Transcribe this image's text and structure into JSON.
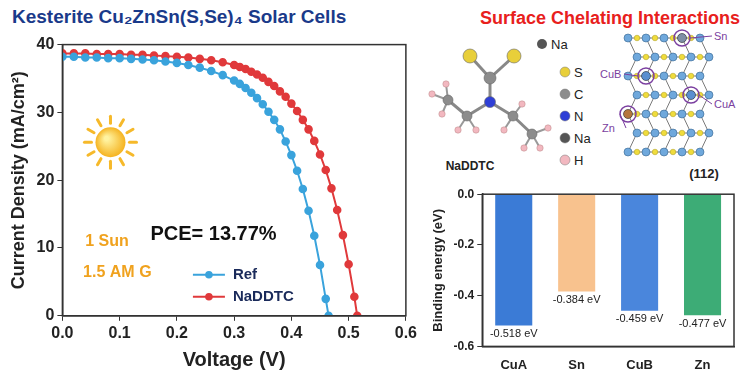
{
  "title": "Kesterite Cu₂ZnSn(S,Se)₄ Solar Cells",
  "chart_data": [
    {
      "type": "line",
      "x_label": "Voltage (V)",
      "y_label": "Current Density (mA/cm²)",
      "xlim": [
        0,
        0.6
      ],
      "xticks": [
        {
          "value": 0,
          "label": "0.0"
        },
        0.1,
        0.2,
        0.3,
        0.4,
        0.5,
        0.6
      ],
      "ylim": [
        0,
        40
      ],
      "yticks": [
        0,
        10,
        20,
        30,
        40
      ],
      "grid": false,
      "legend": "lower center",
      "marker": "circle",
      "line_style": "solid",
      "annotations": [
        "PCE= 13.77%",
        "1 Sun",
        "1.5 AM G"
      ],
      "series": [
        {
          "name": "Ref",
          "color": "#3aa3dc",
          "x": [
            0,
            0.02,
            0.04,
            0.06,
            0.08,
            0.1,
            0.12,
            0.14,
            0.16,
            0.18,
            0.2,
            0.22,
            0.24,
            0.26,
            0.28,
            0.3,
            0.31,
            0.32,
            0.33,
            0.34,
            0.35,
            0.36,
            0.37,
            0.38,
            0.39,
            0.4,
            0.41,
            0.42,
            0.43,
            0.44,
            0.45,
            0.46,
            0.465
          ],
          "values": [
            38.2,
            38.2,
            38.1,
            38.1,
            38.0,
            38.0,
            37.9,
            37.8,
            37.7,
            37.5,
            37.3,
            37.0,
            36.6,
            36.1,
            35.5,
            34.7,
            34.2,
            33.6,
            32.9,
            32.1,
            31.2,
            30.1,
            28.9,
            27.5,
            25.7,
            23.7,
            21.4,
            18.7,
            15.5,
            11.8,
            7.5,
            2.5,
            0
          ]
        },
        {
          "name": "NaDDTC",
          "color": "#e0393b",
          "x": [
            0,
            0.02,
            0.04,
            0.06,
            0.08,
            0.1,
            0.12,
            0.14,
            0.16,
            0.18,
            0.2,
            0.22,
            0.24,
            0.26,
            0.28,
            0.3,
            0.31,
            0.32,
            0.33,
            0.34,
            0.35,
            0.36,
            0.37,
            0.38,
            0.39,
            0.4,
            0.41,
            0.42,
            0.43,
            0.44,
            0.45,
            0.46,
            0.47,
            0.48,
            0.49,
            0.5,
            0.51,
            0.515
          ],
          "values": [
            38.7,
            38.7,
            38.7,
            38.6,
            38.6,
            38.6,
            38.5,
            38.5,
            38.4,
            38.3,
            38.2,
            38.1,
            37.9,
            37.7,
            37.4,
            37.0,
            36.7,
            36.4,
            36.0,
            35.6,
            35.1,
            34.5,
            33.9,
            33.1,
            32.3,
            31.3,
            30.2,
            28.9,
            27.5,
            25.8,
            23.8,
            21.5,
            18.8,
            15.6,
            11.9,
            7.6,
            2.8,
            0
          ]
        }
      ]
    },
    {
      "type": "bar",
      "y_label": "Binding energy (eV)",
      "categories": [
        "CuA",
        "Sn",
        "CuB",
        "Zn"
      ],
      "values": [
        -0.518,
        -0.384,
        -0.459,
        -0.477
      ],
      "value_labels": [
        "-0.518 eV",
        "-0.384 eV",
        "-0.459 eV",
        "-0.477 eV"
      ],
      "colors": [
        "#3b7bd6",
        "#f8c28e",
        "#4a86dc",
        "#3dac76"
      ],
      "ylim": [
        -0.6,
        0
      ],
      "yticks": [
        -0.6,
        -0.4,
        -0.2,
        {
          "value": 0,
          "label": "0.0"
        }
      ],
      "grid": false,
      "data_labels": true
    }
  ],
  "diagram": {
    "title": "Surface Chelating Interactions",
    "molecule": {
      "label": "NaDDTC",
      "atom_label": "Na"
    },
    "elements": [
      {
        "symbol": "S",
        "color": "#e8cf3a"
      },
      {
        "symbol": "C",
        "color": "#8c8c8c"
      },
      {
        "symbol": "N",
        "color": "#2f3fd6"
      },
      {
        "symbol": "Na",
        "color": "#555555"
      },
      {
        "symbol": "H",
        "color": "#f2b8c0"
      }
    ],
    "surface": {
      "label": "(112)",
      "sites": [
        "Sn",
        "CuB",
        "CuA",
        "Zn"
      ]
    }
  }
}
